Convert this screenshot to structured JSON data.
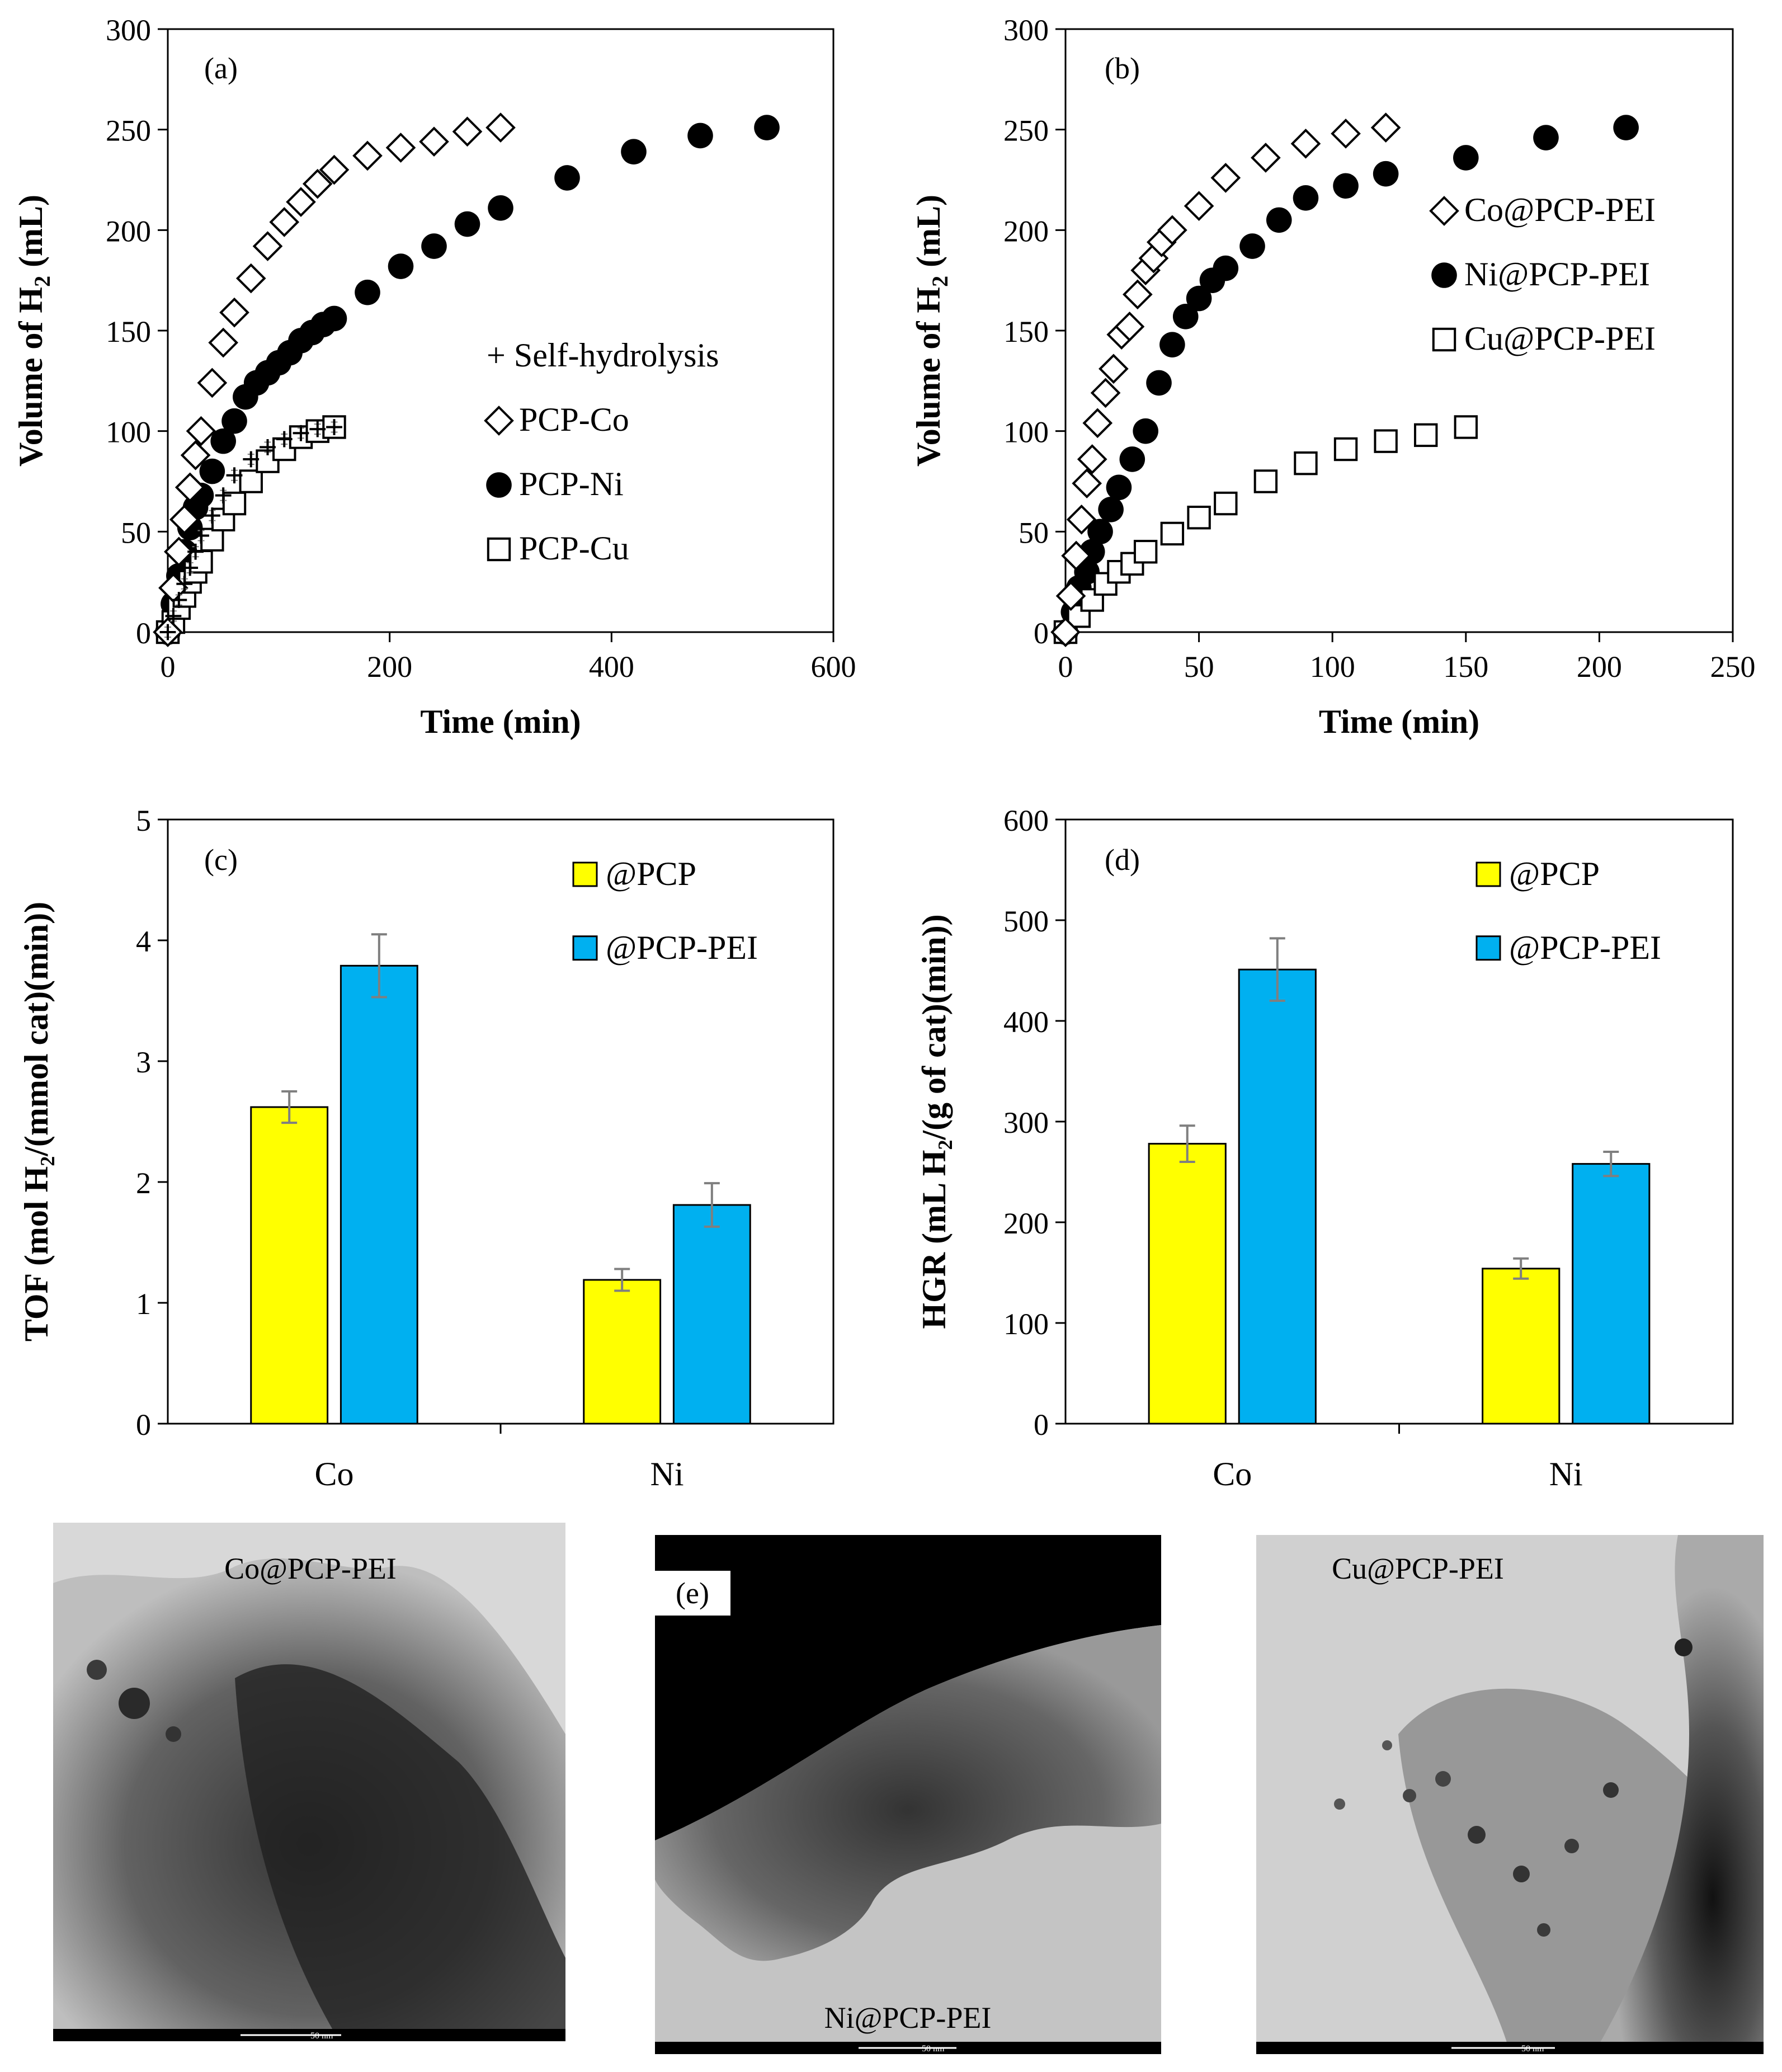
{
  "chart_data": [
    {
      "id": "a",
      "type": "scatter",
      "panel_label": "(a)",
      "xlabel": "Time (min)",
      "ylabel": "Volume of H",
      "ylabel_sub": "2",
      "ylabel_tail": " (mL)",
      "xlim": [
        0,
        600
      ],
      "ylim": [
        0,
        300
      ],
      "xticks": [
        0,
        200,
        400,
        600
      ],
      "yticks": [
        0,
        50,
        100,
        150,
        200,
        250,
        300
      ],
      "legend": [
        "+ Self-hydrolysis",
        "PCP-Co",
        "PCP-Ni",
        "PCP-Cu"
      ],
      "series": [
        {
          "name": "Self-hydrolysis",
          "marker": "plus",
          "x": [
            0,
            5,
            10,
            15,
            20,
            25,
            30,
            40,
            50,
            60,
            75,
            90,
            105,
            120,
            135,
            150
          ],
          "y": [
            0,
            8,
            16,
            24,
            32,
            40,
            48,
            58,
            68,
            78,
            86,
            92,
            96,
            99,
            101,
            102
          ]
        },
        {
          "name": "PCP-Co",
          "marker": "diamond",
          "x": [
            0,
            5,
            10,
            15,
            20,
            25,
            30,
            40,
            50,
            60,
            75,
            90,
            105,
            120,
            135,
            150,
            180,
            210,
            240,
            270,
            300
          ],
          "y": [
            0,
            22,
            40,
            56,
            72,
            88,
            100,
            124,
            144,
            159,
            176,
            192,
            204,
            214,
            223,
            230,
            237,
            241,
            244,
            249,
            251
          ]
        },
        {
          "name": "PCP-Ni",
          "marker": "circle",
          "x": [
            0,
            5,
            10,
            15,
            20,
            25,
            30,
            40,
            50,
            60,
            70,
            80,
            90,
            100,
            110,
            120,
            130,
            140,
            150,
            180,
            210,
            240,
            270,
            300,
            360,
            420,
            480,
            540
          ],
          "y": [
            0,
            14,
            28,
            40,
            52,
            62,
            68,
            80,
            95,
            105,
            117,
            124,
            129,
            134,
            139,
            145,
            149,
            153,
            156,
            169,
            182,
            192,
            203,
            211,
            226,
            239,
            247,
            251
          ]
        },
        {
          "name": "PCP-Cu",
          "marker": "square",
          "x": [
            0,
            5,
            10,
            15,
            20,
            25,
            30,
            40,
            50,
            60,
            75,
            90,
            105,
            120,
            135,
            150
          ],
          "y": [
            0,
            5,
            12,
            18,
            25,
            30,
            35,
            46,
            56,
            64,
            75,
            85,
            91,
            97,
            100,
            102
          ]
        }
      ]
    },
    {
      "id": "b",
      "type": "scatter",
      "panel_label": "(b)",
      "xlabel": "Time (min)",
      "ylabel": "Volume of H",
      "ylabel_sub": "2",
      "ylabel_tail": " (mL)",
      "xlim": [
        0,
        250
      ],
      "ylim": [
        0,
        300
      ],
      "xticks": [
        0,
        50,
        100,
        150,
        200,
        250
      ],
      "yticks": [
        0,
        50,
        100,
        150,
        200,
        250,
        300
      ],
      "legend": [
        "Co@PCP-PEI",
        "Ni@PCP-PEI",
        "Cu@PCP-PEI"
      ],
      "series": [
        {
          "name": "Co@PCP-PEI",
          "marker": "diamond",
          "x": [
            0,
            2,
            4,
            6,
            8,
            10,
            12,
            15,
            18,
            21,
            24,
            27,
            30,
            33,
            36,
            40,
            50,
            60,
            75,
            90,
            105,
            120
          ],
          "y": [
            0,
            18,
            38,
            56,
            74,
            86,
            104,
            119,
            131,
            148,
            152,
            168,
            180,
            186,
            194,
            200,
            212,
            226,
            236,
            243,
            248,
            251
          ]
        },
        {
          "name": "Ni@PCP-PEI",
          "marker": "circle",
          "x": [
            0,
            3,
            5,
            8,
            10,
            13,
            17,
            20,
            25,
            30,
            35,
            40,
            45,
            50,
            55,
            60,
            70,
            80,
            90,
            105,
            120,
            150,
            180,
            210
          ],
          "y": [
            0,
            10,
            22,
            30,
            40,
            50,
            61,
            72,
            86,
            100,
            124,
            143,
            157,
            166,
            175,
            181,
            192,
            205,
            216,
            222,
            228,
            236,
            246,
            251
          ]
        },
        {
          "name": "Cu@PCP-PEI",
          "marker": "square",
          "x": [
            0,
            5,
            10,
            15,
            20,
            25,
            30,
            40,
            50,
            60,
            75,
            90,
            105,
            120,
            135,
            150
          ],
          "y": [
            0,
            8,
            16,
            24,
            30,
            34,
            40,
            49,
            57,
            64,
            75,
            84,
            91,
            95,
            98,
            102
          ]
        }
      ]
    },
    {
      "id": "c",
      "type": "bar",
      "panel_label": "(c)",
      "ylabel": "TOF (mol H₂/(mmol cat)(min))",
      "ylim": [
        0,
        5
      ],
      "yticks": [
        0,
        1,
        2,
        3,
        4,
        5
      ],
      "categories": [
        "Co",
        "Ni"
      ],
      "series": [
        {
          "name": "@PCP",
          "color": "#ffff00",
          "values": [
            2.62,
            1.19
          ],
          "errors": [
            0.13,
            0.09
          ]
        },
        {
          "name": "@PCP-PEI",
          "color": "#00b0f0",
          "values": [
            3.79,
            1.81
          ],
          "errors": [
            0.26,
            0.18
          ]
        }
      ]
    },
    {
      "id": "d",
      "type": "bar",
      "panel_label": "(d)",
      "ylabel": "HGR (mL H₂/(g of cat)(min))",
      "ylim": [
        0,
        600
      ],
      "yticks": [
        0,
        100,
        200,
        300,
        400,
        500,
        600
      ],
      "categories": [
        "Co",
        "Ni"
      ],
      "series": [
        {
          "name": "@PCP",
          "color": "#ffff00",
          "values": [
            278,
            154
          ],
          "errors": [
            18,
            10
          ]
        },
        {
          "name": "@PCP-PEI",
          "color": "#00b0f0",
          "values": [
            451,
            258
          ],
          "errors": [
            31,
            12
          ]
        }
      ]
    }
  ],
  "tem_images": [
    {
      "label": "Co@PCP-PEI",
      "scale": "50 nm"
    },
    {
      "label": "Ni@PCP-PEI",
      "scale": "50 nm",
      "panel_label": "(e)"
    },
    {
      "label": "Cu@PCP-PEI",
      "scale": "50 nm"
    }
  ],
  "colors": {
    "yellow": "#ffff00",
    "blue": "#00b0f0",
    "axis": "#000000",
    "errorbar": "#7f7f7f"
  }
}
